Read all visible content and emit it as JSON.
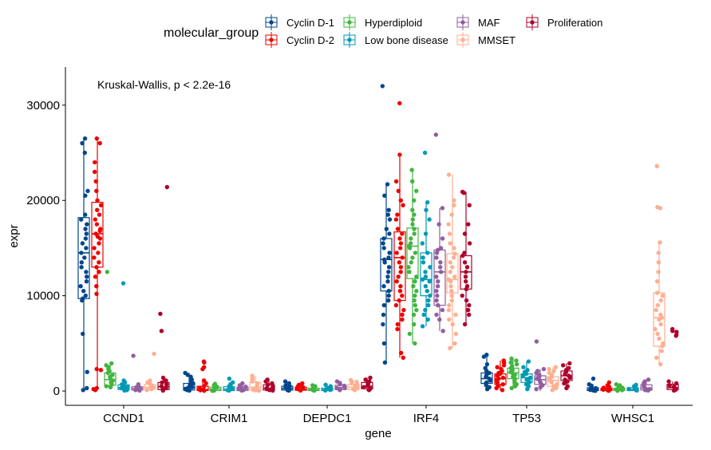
{
  "chart_data": {
    "type": "boxplot-jitter",
    "legend_title": "molecular_group",
    "legend_position": "top",
    "xlabel": "gene",
    "ylabel": "expr",
    "ylim": [
      -1500,
      34000
    ],
    "y_ticks": [
      0,
      10000,
      20000,
      30000
    ],
    "y_tick_labels": [
      "0",
      "10000",
      "20000",
      "30000"
    ],
    "grid": false,
    "annotation": "Kruskal-Wallis, p < 2.2e-16",
    "categories": [
      "CCND1",
      "CRIM1",
      "DEPDC1",
      "IRF4",
      "TP53",
      "WHSC1"
    ],
    "series": [
      {
        "name": "Cyclin D-1",
        "color": "#00468B"
      },
      {
        "name": "Cyclin D-2",
        "color": "#ED0000"
      },
      {
        "name": "Hyperdiploid",
        "color": "#42B540"
      },
      {
        "name": "Low bone disease",
        "color": "#0099B4"
      },
      {
        "name": "MAF",
        "color": "#925E9F"
      },
      {
        "name": "MMSET",
        "color": "#FDAF91"
      },
      {
        "name": "Proliferation",
        "color": "#AD002A"
      }
    ],
    "boxes": [
      [
        {
          "min": 0,
          "q1": 9700,
          "median": 14500,
          "q3": 18200,
          "max": 26500,
          "points": [
            26500,
            26000,
            25000,
            21000,
            20500,
            18500,
            18000,
            17500,
            17000,
            16500,
            16000,
            15500,
            15000,
            14500,
            14000,
            13500,
            13000,
            12500,
            12000,
            11500,
            11000,
            10500,
            10000,
            9700,
            9500,
            6000,
            2000,
            300,
            100
          ]
        },
        {
          "min": 100,
          "q1": 13000,
          "median": 16500,
          "q3": 19800,
          "max": 26500,
          "points": [
            26500,
            26000,
            24000,
            23000,
            22000,
            21000,
            20000,
            19500,
            19000,
            18500,
            18000,
            17500,
            17000,
            16800,
            16500,
            16200,
            16000,
            15500,
            15000,
            14500,
            14000,
            13500,
            13000,
            12500,
            12000,
            11000,
            10200,
            2300,
            2200,
            300,
            200,
            100
          ]
        },
        {
          "min": 400,
          "q1": 600,
          "median": 1200,
          "q3": 1900,
          "max": 2900,
          "points": [
            12500,
            2900,
            2700,
            2500,
            2300,
            2100,
            1900,
            1700,
            1500,
            1300,
            1100,
            900,
            700,
            500,
            400
          ]
        },
        {
          "min": 0,
          "q1": 150,
          "median": 350,
          "q3": 650,
          "max": 1100,
          "points": [
            11300,
            1100,
            900,
            700,
            500,
            400,
            300,
            200,
            100,
            50
          ]
        },
        {
          "min": 0,
          "q1": 100,
          "median": 250,
          "q3": 450,
          "max": 700,
          "points": [
            3700,
            700,
            500,
            400,
            300,
            200,
            100,
            50
          ]
        },
        {
          "min": 0,
          "q1": 200,
          "median": 400,
          "q3": 700,
          "max": 1100,
          "points": [
            3900,
            1100,
            900,
            700,
            500,
            400,
            300,
            200,
            100
          ]
        },
        {
          "min": 0,
          "q1": 150,
          "median": 450,
          "q3": 900,
          "max": 1400,
          "points": [
            21400,
            8100,
            6300,
            1400,
            1100,
            900,
            700,
            500,
            300,
            150,
            50
          ]
        }
      ],
      [
        {
          "min": 0,
          "q1": 100,
          "median": 350,
          "q3": 800,
          "max": 1900,
          "points": [
            1900,
            1700,
            1500,
            1200,
            1000,
            800,
            600,
            400,
            300,
            200,
            100,
            50
          ]
        },
        {
          "min": 0,
          "q1": 50,
          "median": 150,
          "q3": 500,
          "max": 1100,
          "points": [
            3100,
            3000,
            2500,
            2300,
            1100,
            800,
            500,
            300,
            150,
            80,
            30
          ]
        },
        {
          "min": 0,
          "q1": 50,
          "median": 200,
          "q3": 400,
          "max": 750,
          "points": [
            750,
            600,
            450,
            300,
            200,
            100,
            50,
            20
          ]
        },
        {
          "min": 0,
          "q1": 50,
          "median": 200,
          "q3": 450,
          "max": 900,
          "points": [
            1300,
            900,
            700,
            500,
            350,
            200,
            100,
            50
          ]
        },
        {
          "min": 0,
          "q1": 50,
          "median": 200,
          "q3": 400,
          "max": 800,
          "points": [
            800,
            600,
            450,
            300,
            200,
            100,
            50
          ]
        },
        {
          "min": 0,
          "q1": 100,
          "median": 400,
          "q3": 900,
          "max": 1600,
          "points": [
            1600,
            1400,
            1200,
            1000,
            800,
            600,
            400,
            250,
            150,
            80,
            30
          ]
        },
        {
          "min": 0,
          "q1": 100,
          "median": 300,
          "q3": 650,
          "max": 1200,
          "points": [
            1200,
            1000,
            800,
            650,
            450,
            300,
            200,
            100,
            50
          ]
        }
      ],
      [
        {
          "min": 0,
          "q1": 100,
          "median": 250,
          "q3": 500,
          "max": 1000,
          "points": [
            1000,
            800,
            600,
            500,
            400,
            300,
            200,
            100,
            50
          ]
        },
        {
          "min": 0,
          "q1": 80,
          "median": 200,
          "q3": 400,
          "max": 800,
          "points": [
            800,
            650,
            500,
            400,
            300,
            200,
            120,
            60
          ]
        },
        {
          "min": 0,
          "q1": 50,
          "median": 150,
          "q3": 300,
          "max": 600,
          "points": [
            600,
            500,
            400,
            300,
            200,
            150,
            80,
            40
          ]
        },
        {
          "min": 0,
          "q1": 50,
          "median": 150,
          "q3": 300,
          "max": 650,
          "points": [
            650,
            500,
            400,
            300,
            200,
            120,
            60
          ]
        },
        {
          "min": 0,
          "q1": 150,
          "median": 350,
          "q3": 600,
          "max": 1000,
          "points": [
            1000,
            850,
            700,
            550,
            400,
            300,
            200,
            100
          ]
        },
        {
          "min": 0,
          "q1": 150,
          "median": 400,
          "q3": 700,
          "max": 1150,
          "points": [
            1150,
            950,
            800,
            650,
            500,
            400,
            300,
            200,
            100
          ]
        },
        {
          "min": 0,
          "q1": 250,
          "median": 500,
          "q3": 900,
          "max": 1400,
          "points": [
            1400,
            1200,
            1000,
            850,
            700,
            550,
            400,
            250,
            100
          ]
        }
      ],
      [
        {
          "min": 3000,
          "q1": 10500,
          "median": 13800,
          "q3": 16000,
          "max": 21700,
          "points": [
            32000,
            21700,
            20500,
            19000,
            18500,
            18000,
            17000,
            16500,
            16000,
            15500,
            15000,
            14500,
            14000,
            13800,
            13500,
            13000,
            12500,
            12000,
            11500,
            11000,
            10500,
            10000,
            9500,
            9000,
            8000,
            7000,
            5000,
            3000
          ]
        },
        {
          "min": 3500,
          "q1": 9500,
          "median": 14000,
          "q3": 16700,
          "max": 24800,
          "points": [
            30200,
            24800,
            22000,
            21000,
            20000,
            19500,
            18500,
            18000,
            17000,
            16500,
            16000,
            15500,
            15000,
            14500,
            14000,
            13500,
            13000,
            12500,
            12000,
            11500,
            11000,
            10500,
            10000,
            9500,
            9000,
            8500,
            8000,
            7500,
            7000,
            6500,
            4000,
            3500
          ]
        },
        {
          "min": 5000,
          "q1": 11800,
          "median": 15200,
          "q3": 17100,
          "max": 23200,
          "points": [
            23200,
            22000,
            21000,
            20000,
            19000,
            18500,
            18000,
            17500,
            17000,
            16500,
            16000,
            15500,
            15200,
            15000,
            14500,
            14000,
            13500,
            13000,
            12500,
            12000,
            11500,
            11000,
            10500,
            10000,
            9500,
            9000,
            8500,
            8000,
            7000,
            6000,
            5000
          ]
        },
        {
          "min": 6800,
          "q1": 10000,
          "median": 11700,
          "q3": 14500,
          "max": 19800,
          "points": [
            25000,
            19800,
            19000,
            18000,
            16500,
            15500,
            14500,
            14000,
            13500,
            13000,
            12500,
            12000,
            11700,
            11500,
            11000,
            10500,
            10000,
            9500,
            9000,
            8500,
            8000,
            7500,
            6800
          ]
        },
        {
          "min": 6300,
          "q1": 9000,
          "median": 12500,
          "q3": 14800,
          "max": 19200,
          "points": [
            26900,
            19200,
            17500,
            16000,
            15000,
            14800,
            14500,
            14000,
            13500,
            13000,
            12500,
            12000,
            11500,
            11000,
            10500,
            10000,
            9500,
            9000,
            8500,
            8000,
            7500,
            6300
          ]
        },
        {
          "min": 4500,
          "q1": 10300,
          "median": 11700,
          "q3": 14400,
          "max": 22700,
          "points": [
            22700,
            20000,
            19500,
            18500,
            17500,
            16500,
            15500,
            15000,
            14400,
            14000,
            13500,
            13000,
            12500,
            12000,
            11700,
            11500,
            11000,
            10500,
            10000,
            9500,
            9000,
            8500,
            8000,
            7500,
            7000,
            6000,
            5000,
            4500
          ]
        },
        {
          "min": 7000,
          "q1": 10700,
          "median": 12500,
          "q3": 14200,
          "max": 20900,
          "points": [
            20900,
            20800,
            19500,
            17500,
            16500,
            15500,
            14500,
            14200,
            13500,
            13000,
            12500,
            12000,
            11500,
            11000,
            10700,
            10000,
            9500,
            9000,
            8500,
            8000,
            7000
          ]
        }
      ],
      [
        {
          "min": 0,
          "q1": 800,
          "median": 1300,
          "q3": 1900,
          "max": 3800,
          "points": [
            3800,
            3600,
            2800,
            2400,
            2100,
            1900,
            1700,
            1500,
            1300,
            1100,
            900,
            800,
            600,
            400,
            200
          ]
        },
        {
          "min": 100,
          "q1": 700,
          "median": 1300,
          "q3": 1800,
          "max": 3200,
          "points": [
            3200,
            3000,
            2700,
            2500,
            2300,
            2100,
            1900,
            1800,
            1600,
            1400,
            1300,
            1100,
            900,
            700,
            500,
            300,
            100
          ]
        },
        {
          "min": 300,
          "q1": 1300,
          "median": 1900,
          "q3": 2400,
          "max": 3400,
          "points": [
            3400,
            3200,
            3000,
            2800,
            2600,
            2400,
            2200,
            2000,
            1900,
            1700,
            1500,
            1300,
            1100,
            900,
            700,
            500,
            300
          ]
        },
        {
          "min": 200,
          "q1": 900,
          "median": 1400,
          "q3": 1800,
          "max": 3100,
          "points": [
            3100,
            2500,
            2200,
            2000,
            1800,
            1600,
            1400,
            1200,
            1000,
            900,
            700,
            500,
            200
          ]
        },
        {
          "min": 0,
          "q1": 700,
          "median": 1200,
          "q3": 1600,
          "max": 2300,
          "points": [
            5200,
            2300,
            2100,
            1900,
            1700,
            1500,
            1300,
            1200,
            1000,
            800,
            600,
            400,
            200
          ]
        },
        {
          "min": 0,
          "q1": 500,
          "median": 1100,
          "q3": 1500,
          "max": 2500,
          "points": [
            2500,
            2300,
            2100,
            1900,
            1700,
            1500,
            1300,
            1100,
            900,
            700,
            500,
            300,
            100
          ]
        },
        {
          "min": 300,
          "q1": 1100,
          "median": 1600,
          "q3": 2100,
          "max": 2900,
          "points": [
            2900,
            2700,
            2400,
            2200,
            2000,
            1800,
            1600,
            1400,
            1200,
            1000,
            800,
            500,
            300
          ]
        }
      ],
      [
        {
          "min": 0,
          "q1": 50,
          "median": 150,
          "q3": 350,
          "max": 700,
          "points": [
            1300,
            700,
            550,
            400,
            300,
            200,
            120,
            60,
            20
          ]
        },
        {
          "min": 0,
          "q1": 50,
          "median": 150,
          "q3": 300,
          "max": 600,
          "points": [
            900,
            600,
            450,
            350,
            250,
            150,
            80,
            30
          ]
        },
        {
          "min": 0,
          "q1": 50,
          "median": 150,
          "q3": 300,
          "max": 600,
          "points": [
            700,
            600,
            450,
            350,
            250,
            150,
            80,
            30
          ]
        },
        {
          "min": 0,
          "q1": 50,
          "median": 150,
          "q3": 350,
          "max": 650,
          "points": [
            650,
            500,
            400,
            300,
            200,
            120,
            60
          ]
        },
        {
          "min": 0,
          "q1": 100,
          "median": 300,
          "q3": 650,
          "max": 1200,
          "points": [
            1200,
            1000,
            800,
            650,
            500,
            300,
            200,
            100,
            50
          ]
        },
        {
          "min": 2800,
          "q1": 4700,
          "median": 7700,
          "q3": 10300,
          "max": 15600,
          "points": [
            23600,
            19300,
            19200,
            15600,
            14500,
            13500,
            12500,
            11500,
            10300,
            10000,
            9500,
            9000,
            8500,
            8000,
            7700,
            7500,
            7000,
            6500,
            6000,
            5500,
            5000,
            4700,
            4200,
            3500,
            2800
          ]
        },
        {
          "min": 0,
          "q1": 150,
          "median": 350,
          "q3": 700,
          "max": 1000,
          "points": [
            6500,
            6300,
            6200,
            5900,
            5800,
            1000,
            800,
            600,
            450,
            300,
            150,
            50
          ]
        }
      ]
    ]
  }
}
